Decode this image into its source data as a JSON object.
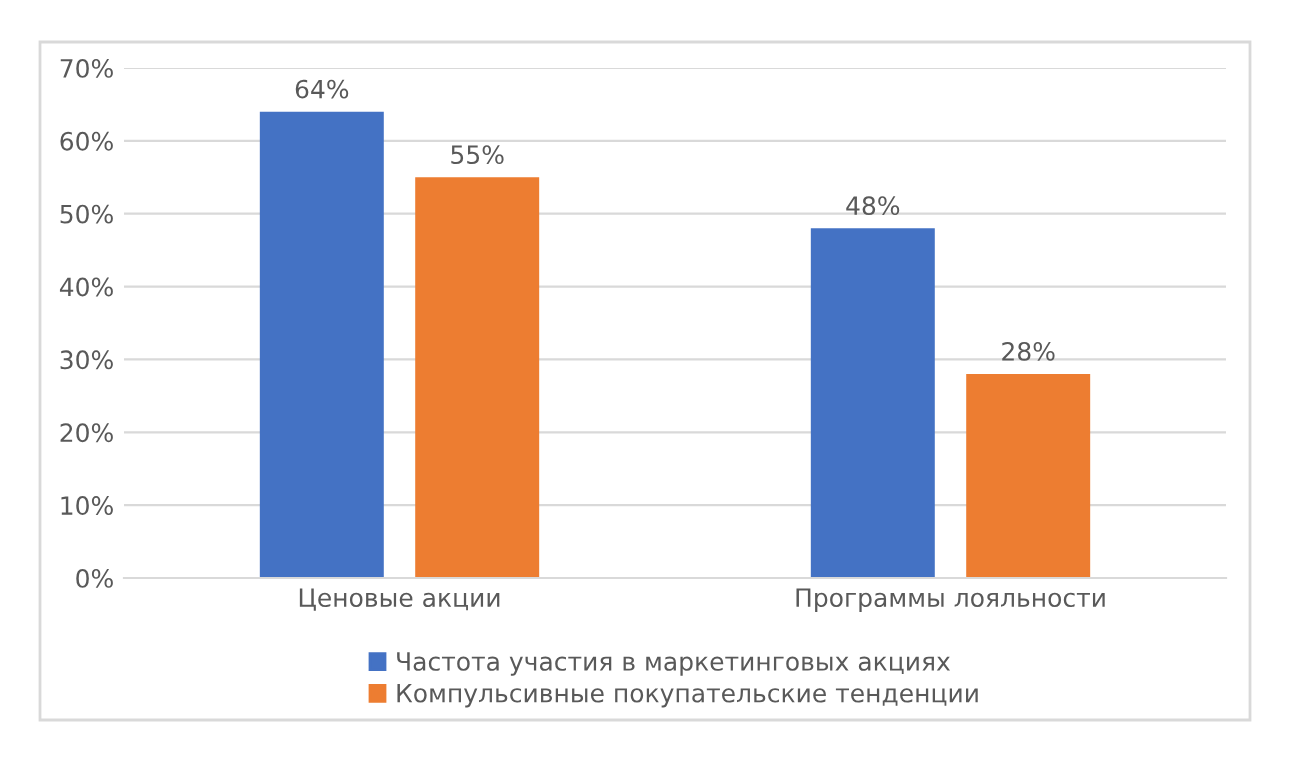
{
  "chart_data": {
    "type": "bar",
    "categories": [
      "Ценовые акции",
      "Программы лояльности"
    ],
    "series": [
      {
        "name": "Частота участия в маркетинговых акциях",
        "color": "#4472c4",
        "values": [
          64,
          48
        ],
        "value_labels": [
          "64%",
          "48%"
        ]
      },
      {
        "name": "Компульсивные покупательские тенденции",
        "color": "#ed7d31",
        "values": [
          55,
          28
        ],
        "value_labels": [
          "55%",
          "28%"
        ]
      }
    ],
    "ylim": [
      0,
      70
    ],
    "yticks": [
      {
        "value": 0,
        "label": "0%"
      },
      {
        "value": 10,
        "label": "10%"
      },
      {
        "value": 20,
        "label": "20%"
      },
      {
        "value": 30,
        "label": "30%"
      },
      {
        "value": 40,
        "label": "40%"
      },
      {
        "value": 50,
        "label": "50%"
      },
      {
        "value": 60,
        "label": "60%"
      },
      {
        "value": 70,
        "label": "70%"
      }
    ],
    "grid": "y",
    "legend": "bottom"
  }
}
